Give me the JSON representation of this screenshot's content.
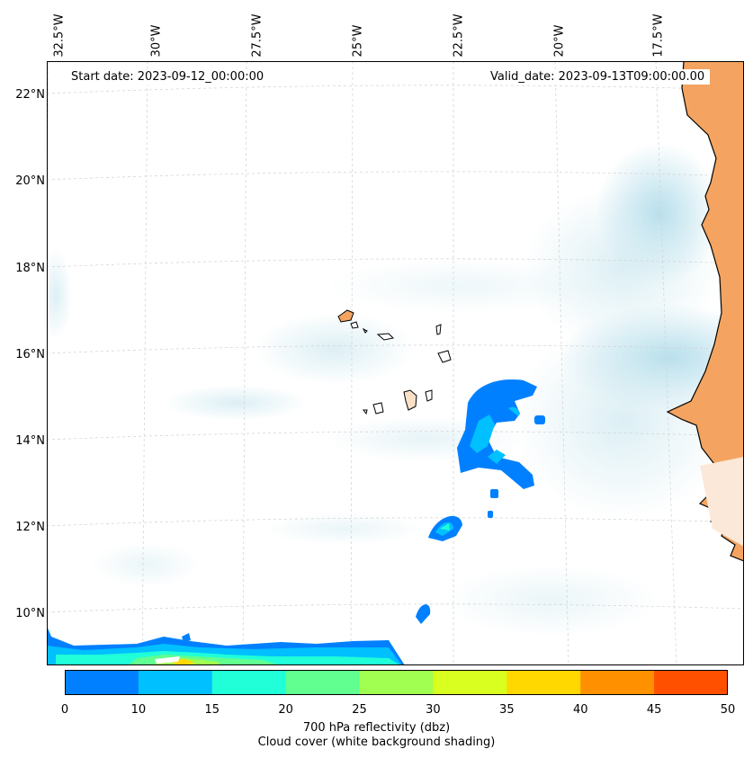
{
  "map": {
    "start_label": "Start date: 2023-09-12_00:00:00",
    "valid_label": "Valid_date: 2023-09-13T09:00:00.00",
    "lon_labels": [
      "32.5°W",
      "30°W",
      "27.5°W",
      "25°W",
      "22.5°W",
      "20°W",
      "17.5°W"
    ],
    "lat_labels": [
      "22°N",
      "20°N",
      "18°N",
      "16°N",
      "14°N",
      "12°N",
      "10°N"
    ]
  },
  "colorbar": {
    "ticks": [
      "0",
      "10",
      "15",
      "20",
      "25",
      "30",
      "35",
      "40",
      "45",
      "50"
    ],
    "colors": [
      "#0080ff",
      "#00c0ff",
      "#20ffd8",
      "#60ff90",
      "#a0ff50",
      "#d8ff20",
      "#ffd800",
      "#ff9000",
      "#ff5000"
    ],
    "label_line1": "700 hPa reflectivity (dbz)",
    "label_line2": "Cloud cover (white background shading)"
  },
  "style": {
    "land_color": "#f4a460",
    "cloud_color": "#a8d8e8",
    "coast_color": "#000000"
  }
}
